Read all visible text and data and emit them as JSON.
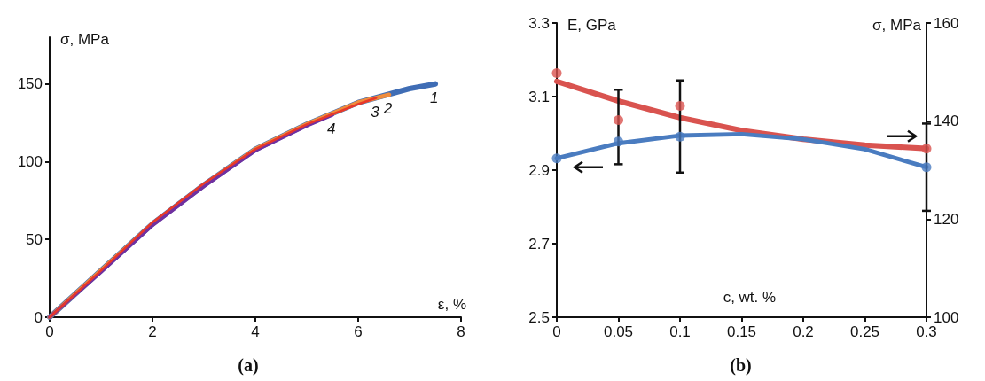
{
  "chart_data": [
    {
      "type": "line",
      "xlabel": "ε, %",
      "ylabel": "σ, MPa",
      "xlim": [
        0,
        8
      ],
      "xticks": [
        0,
        2,
        4,
        6,
        8
      ],
      "ylim": [
        0,
        180
      ],
      "yticks": [
        0,
        50,
        100,
        150
      ],
      "grid": false,
      "marker": "none",
      "line_style": "solid",
      "series": [
        {
          "name": "1",
          "color": "#3f6db5",
          "x": [
            0,
            1,
            2,
            3,
            4,
            5,
            6,
            7,
            7.5
          ],
          "values": [
            0,
            30,
            60,
            85,
            108,
            124,
            138,
            147,
            150
          ]
        },
        {
          "name": "2",
          "color": "#f08c3c",
          "x": [
            0,
            1,
            2,
            3,
            4,
            5,
            6,
            6.6
          ],
          "values": [
            0,
            30,
            60,
            85,
            108,
            124,
            138,
            143
          ]
        },
        {
          "name": "4",
          "color": "#7030a0",
          "x": [
            0,
            1,
            2,
            3,
            4,
            5,
            5.5
          ],
          "values": [
            0,
            29,
            59,
            84,
            107,
            123,
            130
          ]
        },
        {
          "name": "3",
          "color": "#e8382a",
          "x": [
            0,
            1,
            2,
            3,
            4,
            5,
            6,
            6.35
          ],
          "values": [
            0,
            30,
            61,
            86,
            108,
            124,
            137,
            141
          ]
        }
      ],
      "annotations": [
        "(a)"
      ]
    },
    {
      "type": "scatter",
      "xlabel": "c, wt. %",
      "ylabel": "E, GPa",
      "y2label": "σ, MPa",
      "xlim": [
        0,
        0.3
      ],
      "xticks": [
        0,
        0.05,
        0.1,
        0.15,
        0.2,
        0.25,
        0.3
      ],
      "ylim": [
        2.5,
        3.3
      ],
      "yticks": [
        2.5,
        2.7,
        2.9,
        3.1,
        3.3
      ],
      "y2lim": [
        100,
        160
      ],
      "y2ticks": [
        100,
        120,
        140,
        160
      ],
      "grid": false,
      "marker": "circle",
      "series": [
        {
          "type": "line",
          "marker": "none",
          "color": "#d9534f",
          "axis": "y2",
          "x": [
            0,
            0.05,
            0.1,
            0.15,
            0.2,
            0.25,
            0.3
          ],
          "values": [
            148.1,
            144.1,
            140.7,
            138.1,
            136.3,
            135.1,
            134.4
          ]
        },
        {
          "type": "line",
          "marker": "none",
          "color": "#4a7cc0",
          "x": [
            0,
            0.05,
            0.1,
            0.15,
            0.2,
            0.25,
            0.3
          ],
          "values": [
            2.932,
            2.973,
            2.994,
            2.998,
            2.984,
            2.957,
            2.908
          ]
        },
        {
          "color": "#d9534f",
          "axis": "y2",
          "x": [
            0,
            0.05,
            0.1,
            0.3
          ],
          "values": [
            149.8,
            140.2,
            143.1,
            134.4
          ],
          "errors": [
            null,
            [
              131.2,
              146.4
            ],
            [
              129.5,
              148.3
            ],
            [
              121.7,
              139.5
            ]
          ]
        },
        {
          "color": "#4a7cc0",
          "x": [
            0,
            0.05,
            0.1,
            0.3
          ],
          "values": [
            2.932,
            2.978,
            2.991,
            2.908
          ]
        }
      ],
      "annotations": [
        "(b)"
      ]
    }
  ]
}
